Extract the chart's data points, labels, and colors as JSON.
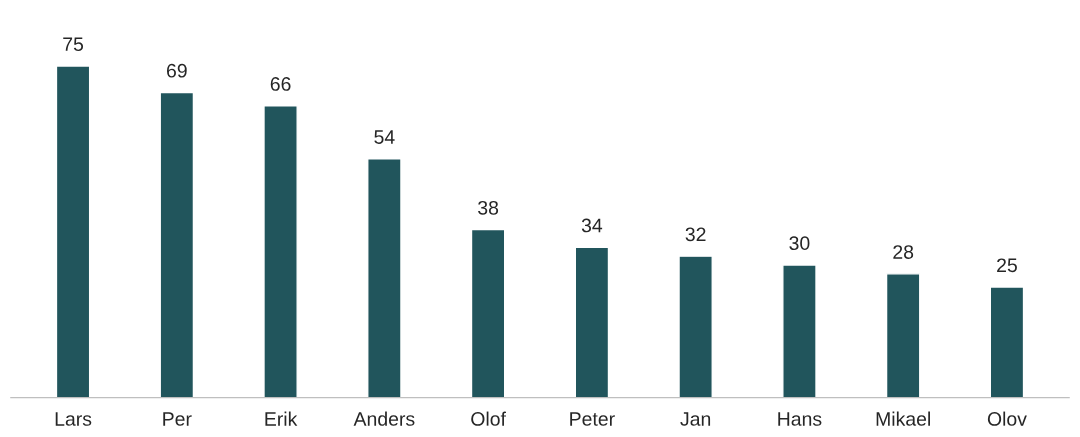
{
  "chart_data": {
    "type": "bar",
    "categories": [
      "Lars",
      "Per",
      "Erik",
      "Anders",
      "Olof",
      "Peter",
      "Jan",
      "Hans",
      "Mikael",
      "Olov"
    ],
    "values": [
      75,
      69,
      66,
      54,
      38,
      34,
      32,
      30,
      28,
      25
    ],
    "color": "#21555c",
    "data_labels": true,
    "grid": false,
    "legend": false
  }
}
